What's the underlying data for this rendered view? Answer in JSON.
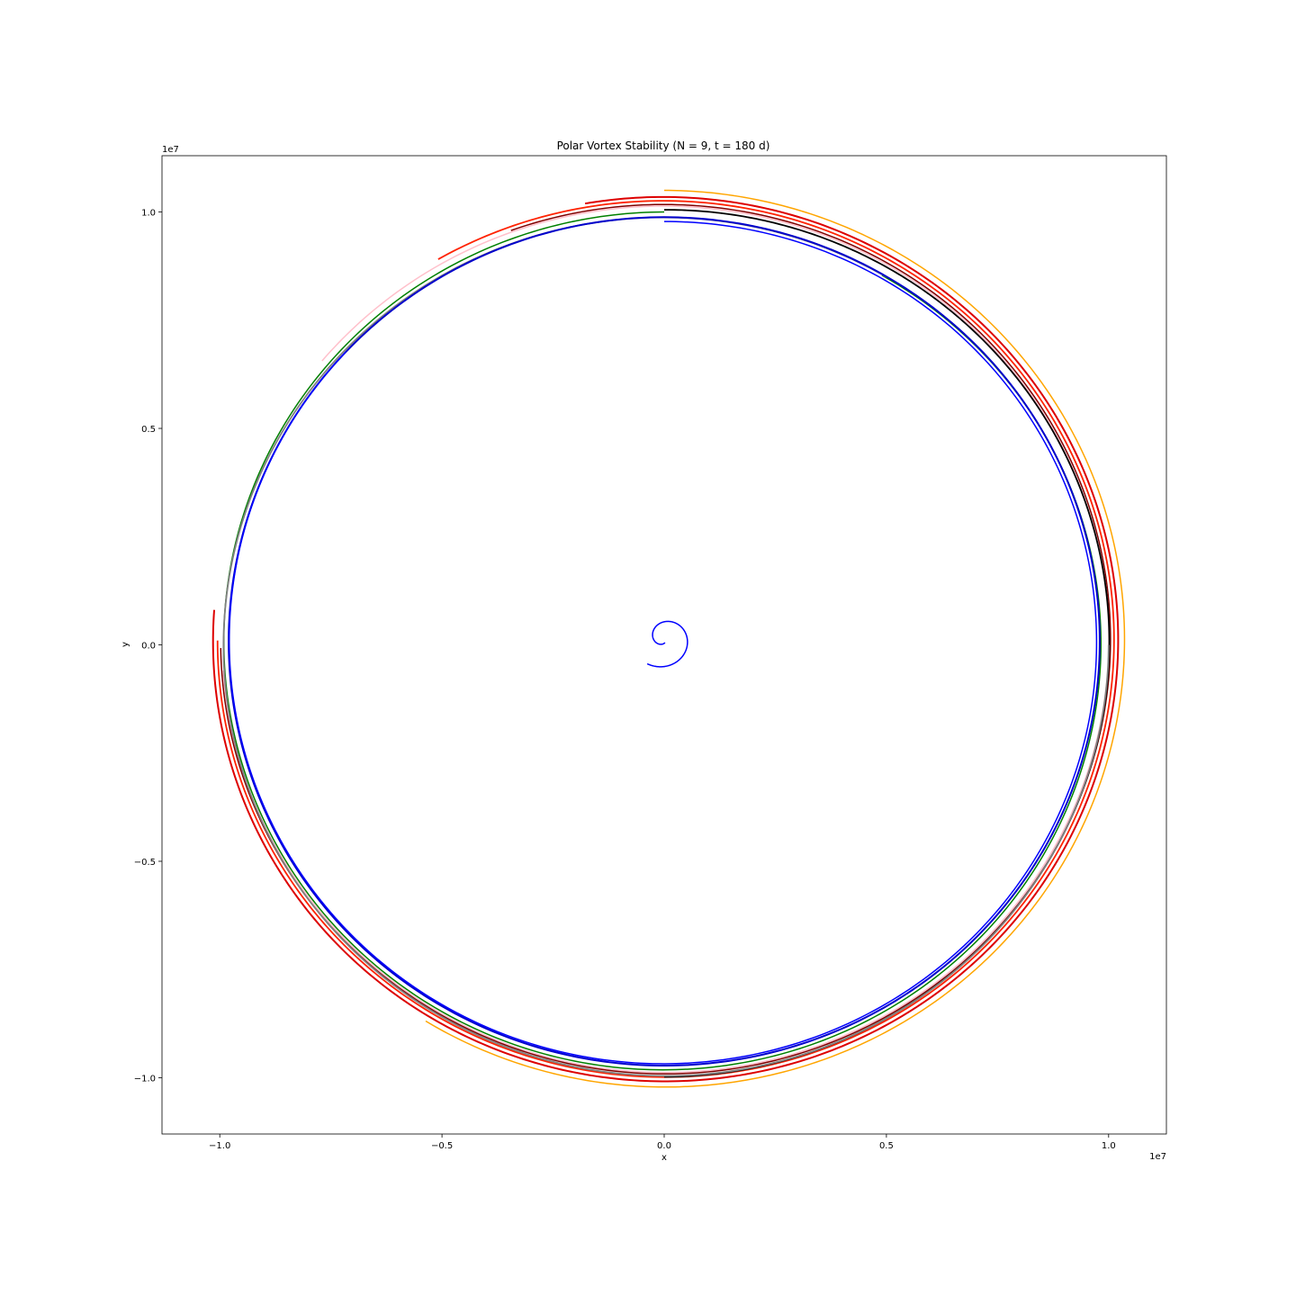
{
  "chart_data": {
    "type": "line",
    "title": "Polar Vortex Stability (N = 9, t = 180 d)",
    "xlabel": "x",
    "ylabel": "y",
    "x_offset_label": "1e7",
    "y_offset_label": "1e7",
    "xlim": [
      -11300000,
      11300000
    ],
    "ylim": [
      -11300000,
      11300000
    ],
    "x_ticks": [
      {
        "value": -10000000,
        "label": "−1.0"
      },
      {
        "value": -5000000,
        "label": "−0.5"
      },
      {
        "value": 0,
        "label": "0.0"
      },
      {
        "value": 5000000,
        "label": "0.5"
      },
      {
        "value": 10000000,
        "label": "1.0"
      }
    ],
    "y_ticks": [
      {
        "value": -10000000,
        "label": "−1.0"
      },
      {
        "value": -5000000,
        "label": "−0.5"
      },
      {
        "value": 0,
        "label": "0.0"
      },
      {
        "value": 5000000,
        "label": "0.5"
      },
      {
        "value": 10000000,
        "label": "1.0"
      }
    ],
    "grid": false,
    "legend": "none",
    "series": [
      {
        "color": "#ffa500",
        "start": [
          -5300000,
          -8700000
        ],
        "cx": 0,
        "cy": 100000,
        "r_start": 10300000,
        "r_end": 10400000,
        "a_start_deg": 238.6,
        "a_end_deg": 450,
        "turns": 1,
        "width": 1.5
      },
      {
        "color": "#ff2200",
        "start": [
          -10000000,
          0
        ],
        "cx": 0,
        "cy": 100000,
        "r_start": 10050000,
        "r_end": 10170000,
        "a_start_deg": 180,
        "a_end_deg": 480,
        "turns": 1,
        "width": 1.8
      },
      {
        "color": "#dd0000",
        "start": [
          -10150000,
          -600000
        ],
        "cx": 0,
        "cy": 100000,
        "r_start": 10150000,
        "r_end": 10250000,
        "a_start_deg": 176,
        "a_end_deg": 460,
        "turns": 1,
        "width": 2.0
      },
      {
        "color": "#ffc0cb",
        "start": [
          -9900000,
          800000
        ],
        "cx": 0,
        "cy": 100000,
        "r_start": 9950000,
        "r_end": 10050000,
        "a_start_deg": 184,
        "a_end_deg": 500,
        "turns": 1,
        "width": 1.5
      },
      {
        "color": "#800000",
        "start": [
          -9950000,
          300000
        ],
        "cx": 0,
        "cy": 100000,
        "r_start": 9980000,
        "r_end": 10080000,
        "a_start_deg": 181,
        "a_end_deg": 470,
        "turns": 1,
        "width": 1.5
      },
      {
        "color": "#000000",
        "start": [
          0,
          -10000000
        ],
        "cx": 0,
        "cy": 100000,
        "r_start": 10080000,
        "r_end": 9950000,
        "a_start_deg": 270,
        "a_end_deg": 450,
        "turns": 1,
        "width": 1.8
      },
      {
        "color": "#008000",
        "start": [
          0,
          10000000
        ],
        "cx": 0,
        "cy": 50000,
        "r_start": 9950000,
        "r_end": 9800000,
        "a_start_deg": 90,
        "a_end_deg": 420,
        "turns": 1,
        "width": 1.5
      },
      {
        "color": "#808080",
        "start": [
          5000000,
          8500000
        ],
        "cx": 0,
        "cy": 0,
        "r_start": 9860000,
        "r_end": 10000000,
        "a_start_deg": 59.5,
        "a_end_deg": 360,
        "turns": 1,
        "width": 1.8
      },
      {
        "color": "#0000cc",
        "start": [
          -1200000,
          9800000
        ],
        "cx": 0,
        "cy": 80000,
        "r_start": 9800000,
        "r_end": 9800000,
        "a_start_deg": 97,
        "a_end_deg": 460,
        "turns": 1,
        "width": 2.0
      },
      {
        "color": "#0000ff",
        "start": [
          -7300000,
          6800000
        ],
        "cx": 0,
        "cy": 80000,
        "r_start": 9800000,
        "r_end": 9700000,
        "a_start_deg": 137,
        "a_end_deg": 450,
        "turns": 1,
        "width": 1.5
      },
      {
        "color": "#0000ff",
        "start": [
          -400000,
          -500000
        ],
        "cx": 0,
        "cy": 150000,
        "r_start": 700000,
        "r_end": 100000,
        "a_start_deg": 237,
        "a_end_deg": 640,
        "turns": 1,
        "width": 1.5
      }
    ]
  }
}
